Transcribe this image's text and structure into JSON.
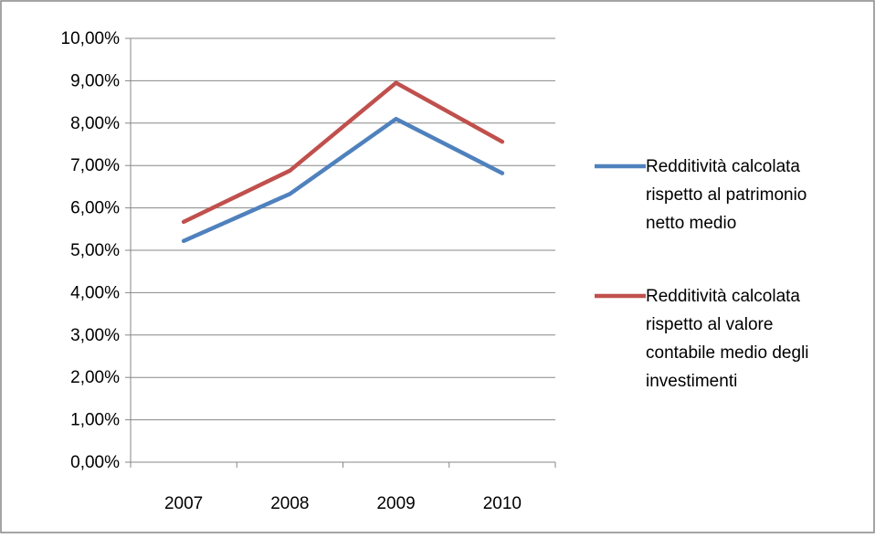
{
  "chart_data": {
    "type": "line",
    "title": "",
    "xlabel": "",
    "ylabel": "",
    "categories": [
      "2007",
      "2008",
      "2009",
      "2010"
    ],
    "ylim": [
      0,
      10
    ],
    "ytick_step": 1,
    "ytick_labels": [
      "0,00%",
      "1,00%",
      "2,00%",
      "3,00%",
      "4,00%",
      "5,00%",
      "6,00%",
      "7,00%",
      "8,00%",
      "9,00%",
      "10,00%"
    ],
    "grid": true,
    "legend_position": "right",
    "series": [
      {
        "name": "Redditività calcolata rispetto al patrimonio netto medio",
        "legend_lines": [
          "Redditività calcolata",
          "rispetto al patrimonio",
          "netto medio"
        ],
        "color": "#4f81bd",
        "values": [
          5.22,
          6.33,
          8.1,
          6.82
        ]
      },
      {
        "name": "Redditività calcolata rispetto al valore contabile medio degli investimenti",
        "legend_lines": [
          "Redditività calcolata",
          "rispetto al valore",
          "contabile medio degli",
          "investimenti"
        ],
        "color": "#c0504d",
        "values": [
          5.67,
          6.88,
          8.95,
          7.56
        ]
      }
    ]
  }
}
